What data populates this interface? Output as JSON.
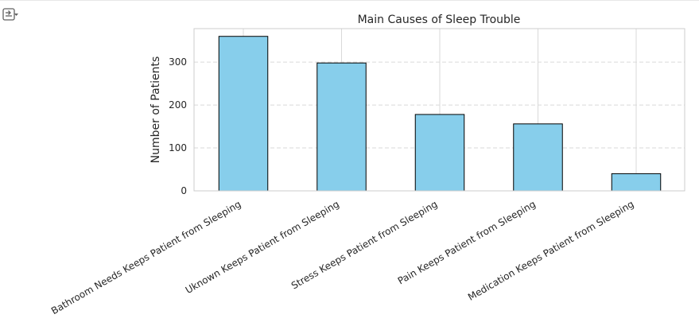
{
  "output_toggle_icon": "collapse-output-icon",
  "chart_data": {
    "type": "bar",
    "title": "Main Causes of Sleep Trouble",
    "xlabel": "",
    "ylabel": "Number of Patients",
    "categories": [
      "Bathroom Needs Keeps Patient from Sleeping",
      "Uknown Keeps Patient from Sleeping",
      "Stress Keeps Patient from Sleeping",
      "Pain Keeps Patient from Sleeping",
      "Medication Keeps Patient from Sleeping"
    ],
    "values": [
      360,
      298,
      178,
      156,
      40
    ],
    "ylim": [
      0,
      378
    ],
    "yticks": [
      "0",
      "100",
      "200",
      "300"
    ],
    "grid": true,
    "colors": {
      "bar_fill": "#87ceeb",
      "bar_edge": "#000000",
      "grid": "#d9d9d9",
      "spine": "#cccccc",
      "text": "#262626"
    }
  }
}
